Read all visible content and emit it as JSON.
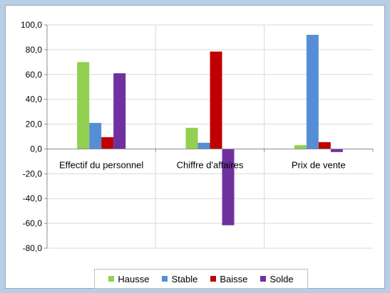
{
  "chart_data": {
    "type": "bar",
    "categories": [
      "Effectif du personnel",
      "Chiffre d'affaires",
      "Prix de vente"
    ],
    "series": [
      {
        "name": "Hausse",
        "color": "#92d050",
        "values": [
          70.0,
          17.0,
          3.0
        ]
      },
      {
        "name": "Stable",
        "color": "#558ed5",
        "values": [
          21.0,
          5.0,
          92.0
        ]
      },
      {
        "name": "Baisse",
        "color": "#c00000",
        "values": [
          9.5,
          78.5,
          5.5
        ]
      },
      {
        "name": "Solde",
        "color": "#7030a0",
        "values": [
          61.0,
          -61.5,
          -2.5
        ]
      }
    ],
    "yticks": [
      "100,0",
      "80,0",
      "60,0",
      "40,0",
      "20,0",
      "0,0",
      "-20,0",
      "-40,0",
      "-60,0",
      "-80,0"
    ],
    "ylim": [
      -80,
      100
    ],
    "grid": true,
    "legend_position": "bottom"
  }
}
